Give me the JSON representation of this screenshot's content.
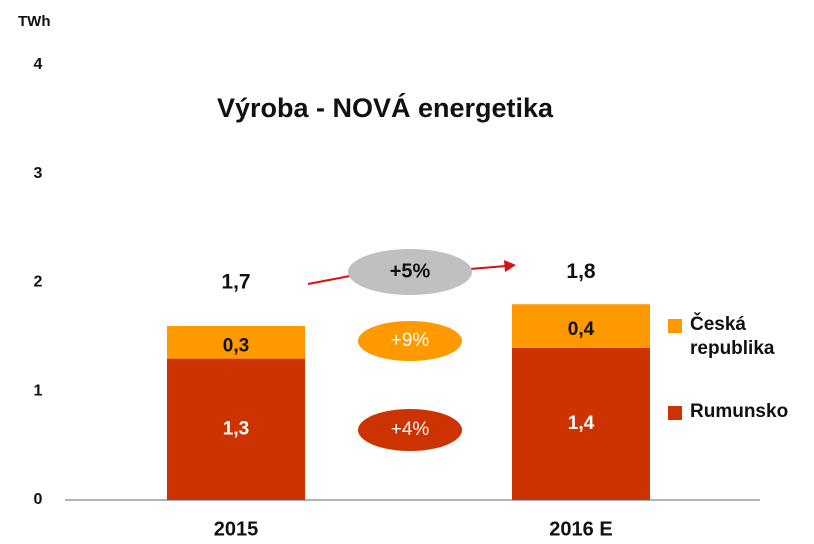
{
  "chart_data": {
    "type": "bar",
    "stacked": true,
    "title": "Výroba - NOVÁ energetika",
    "y_label": "TWh",
    "categories": [
      "2015",
      "2016 E"
    ],
    "series": [
      {
        "name": "Rumunsko",
        "color": "#cc3300",
        "values": [
          1.3,
          1.4
        ],
        "value_labels": [
          "1,3",
          "1,4"
        ]
      },
      {
        "name": "Česká republika",
        "color": "#ff9900",
        "values": [
          0.3,
          0.4
        ],
        "value_labels": [
          "0,3",
          "0,4"
        ]
      }
    ],
    "totals": [
      1.7,
      1.8
    ],
    "total_labels": [
      "1,7",
      "1,8"
    ],
    "annotations": [
      "+5%",
      "+9%",
      "+4%"
    ],
    "ylim": [
      0,
      4
    ],
    "yticks": [
      0,
      1,
      2,
      3,
      4
    ],
    "grid": false
  }
}
